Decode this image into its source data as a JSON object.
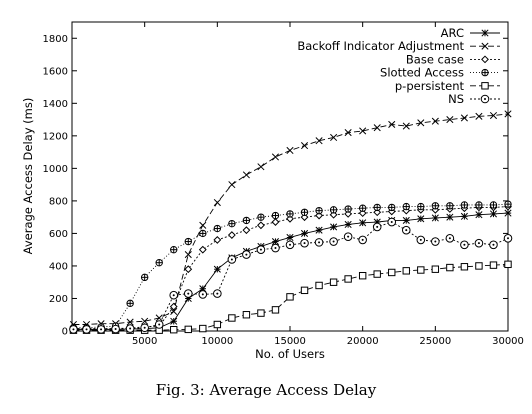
{
  "caption": "Fig. 3: Average Access Delay",
  "chart_data": {
    "type": "line",
    "title": "",
    "xlabel": "No. of Users",
    "ylabel": "Average Access Delay (ms)",
    "xlim": [
      0,
      30000
    ],
    "ylim": [
      0,
      1900
    ],
    "xticks": [
      5000,
      10000,
      15000,
      20000,
      25000,
      30000
    ],
    "yticks": [
      0,
      200,
      400,
      600,
      800,
      1000,
      1200,
      1400,
      1600,
      1800
    ],
    "xtick_labels": [
      "5000",
      "10000",
      "15000",
      "20000",
      "25000",
      "30000"
    ],
    "ytick_labels": [
      "0",
      "200",
      "400",
      "600",
      "800",
      "1000",
      "1200",
      "1400",
      "1600",
      "1800"
    ],
    "grid": false,
    "legend": "top-right",
    "series": [
      {
        "name": "ARC",
        "marker": "asterisk",
        "dash": "",
        "x": [
          100,
          1000,
          2000,
          3000,
          4000,
          5000,
          6000,
          7000,
          8000,
          9000,
          10000,
          11000,
          12000,
          13000,
          14000,
          15000,
          16000,
          17000,
          18000,
          19000,
          20000,
          21000,
          22000,
          23000,
          24000,
          25000,
          26000,
          27000,
          28000,
          29000,
          30000
        ],
        "y": [
          10,
          10,
          10,
          10,
          12,
          14,
          20,
          60,
          200,
          260,
          380,
          450,
          490,
          520,
          550,
          575,
          600,
          620,
          640,
          655,
          665,
          670,
          680,
          680,
          690,
          695,
          700,
          705,
          715,
          720,
          725
        ]
      },
      {
        "name": "Backoff Indicator Adjustment",
        "marker": "x",
        "dash": "6,3",
        "x": [
          100,
          1000,
          2000,
          3000,
          4000,
          5000,
          6000,
          7000,
          8000,
          9000,
          10000,
          11000,
          12000,
          13000,
          14000,
          15000,
          16000,
          17000,
          18000,
          19000,
          20000,
          21000,
          22000,
          23000,
          24000,
          25000,
          26000,
          27000,
          28000,
          29000,
          30000
        ],
        "y": [
          40,
          40,
          45,
          45,
          55,
          60,
          80,
          120,
          470,
          650,
          790,
          900,
          960,
          1010,
          1070,
          1110,
          1140,
          1170,
          1190,
          1220,
          1230,
          1250,
          1270,
          1260,
          1280,
          1290,
          1300,
          1310,
          1320,
          1325,
          1335
        ]
      },
      {
        "name": "Base case",
        "marker": "diamond",
        "dash": "2,2",
        "x": [
          100,
          1000,
          2000,
          3000,
          4000,
          5000,
          6000,
          7000,
          8000,
          9000,
          10000,
          11000,
          12000,
          13000,
          14000,
          15000,
          16000,
          17000,
          18000,
          19000,
          20000,
          21000,
          22000,
          23000,
          24000,
          25000,
          26000,
          27000,
          28000,
          29000,
          30000
        ],
        "y": [
          15,
          15,
          15,
          15,
          18,
          25,
          30,
          150,
          380,
          500,
          560,
          590,
          620,
          650,
          670,
          690,
          700,
          710,
          715,
          720,
          725,
          730,
          735,
          740,
          745,
          745,
          750,
          755,
          760,
          760,
          765
        ]
      },
      {
        "name": "Slotted Access",
        "marker": "circle-plus",
        "dash": "1,2",
        "x": [
          100,
          1000,
          2000,
          3000,
          4000,
          5000,
          6000,
          7000,
          8000,
          9000,
          10000,
          11000,
          12000,
          13000,
          14000,
          15000,
          16000,
          17000,
          18000,
          19000,
          20000,
          21000,
          22000,
          23000,
          24000,
          25000,
          26000,
          27000,
          28000,
          29000,
          30000
        ],
        "y": [
          20,
          20,
          25,
          30,
          170,
          330,
          420,
          500,
          550,
          600,
          630,
          660,
          680,
          700,
          710,
          720,
          730,
          740,
          745,
          750,
          755,
          760,
          760,
          765,
          765,
          770,
          770,
          775,
          775,
          775,
          780
        ]
      },
      {
        "name": "p-persistent",
        "marker": "square",
        "dash": "6,3",
        "x": [
          100,
          1000,
          2000,
          3000,
          4000,
          5000,
          6000,
          7000,
          8000,
          9000,
          10000,
          11000,
          12000,
          13000,
          14000,
          15000,
          16000,
          17000,
          18000,
          19000,
          20000,
          21000,
          22000,
          23000,
          24000,
          25000,
          26000,
          27000,
          28000,
          29000,
          30000
        ],
        "y": [
          5,
          5,
          5,
          5,
          5,
          5,
          5,
          8,
          10,
          15,
          40,
          80,
          100,
          110,
          130,
          210,
          250,
          280,
          300,
          320,
          340,
          350,
          360,
          370,
          375,
          380,
          390,
          395,
          400,
          405,
          410
        ]
      },
      {
        "name": "NS",
        "marker": "circle-dot",
        "dash": "2,2",
        "x": [
          100,
          1000,
          2000,
          3000,
          4000,
          5000,
          6000,
          7000,
          8000,
          9000,
          10000,
          11000,
          12000,
          13000,
          14000,
          15000,
          16000,
          17000,
          18000,
          19000,
          20000,
          21000,
          22000,
          23000,
          24000,
          25000,
          26000,
          27000,
          28000,
          29000,
          30000
        ],
        "y": [
          10,
          10,
          10,
          12,
          15,
          20,
          40,
          220,
          230,
          225,
          230,
          440,
          470,
          500,
          510,
          530,
          540,
          545,
          550,
          580,
          560,
          640,
          670,
          620,
          560,
          550,
          570,
          530,
          540,
          530,
          570
        ]
      }
    ]
  }
}
